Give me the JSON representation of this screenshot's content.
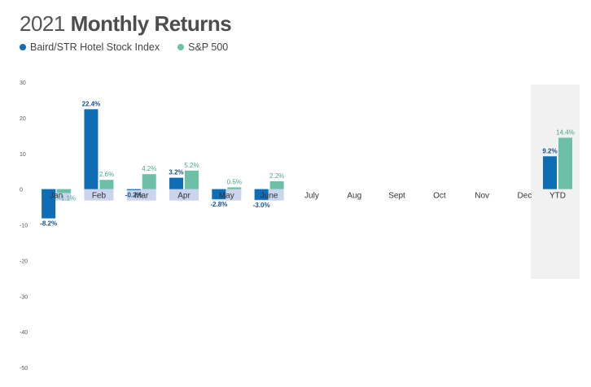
{
  "header": {
    "title_year": "2021",
    "title_main": "Monthly Returns"
  },
  "legend": [
    {
      "label": "Baird/STR Hotel Stock Index",
      "color": "#0e6db5"
    },
    {
      "label": "S&P 500",
      "color": "#6cc0a8"
    }
  ],
  "chart_data": {
    "type": "bar",
    "title": "2021 Monthly Returns",
    "categories": [
      "Jan",
      "Feb",
      "Mar",
      "Apr",
      "May",
      "June",
      "July",
      "Aug",
      "Sept",
      "Oct",
      "Nov",
      "Dec",
      "YTD"
    ],
    "series": [
      {
        "name": "Baird/STR Hotel Stock Index",
        "color": "#0e6db5",
        "values": [
          -8.2,
          22.4,
          -0.2,
          3.2,
          -2.8,
          -3.0,
          null,
          null,
          null,
          null,
          null,
          null,
          9.2
        ],
        "labels": [
          "-8.2%",
          "22.4%",
          "-0.2%",
          "3.2%",
          "-2.8%",
          "-3.0%",
          "",
          "",
          "",
          "",
          "",
          "",
          "9.2%"
        ]
      },
      {
        "name": "S&P 500",
        "color": "#6cc0a8",
        "values": [
          -1.1,
          2.6,
          4.2,
          5.2,
          0.5,
          2.2,
          null,
          null,
          null,
          null,
          null,
          null,
          14.4
        ],
        "labels": [
          "-1.1%",
          "2.6%",
          "4.2%",
          "5.2%",
          "0.5%",
          "2.2%",
          "",
          "",
          "",
          "",
          "",
          "",
          "14.4%"
        ]
      }
    ],
    "yticks": [
      30,
      20,
      10,
      0,
      -10,
      -20,
      -30,
      -40,
      -50
    ],
    "ylim": [
      -50,
      30
    ],
    "label_band_color": "#9fb3df",
    "ytd_background": "#f1f1f1",
    "grid": false,
    "legend_position": "top-left"
  }
}
